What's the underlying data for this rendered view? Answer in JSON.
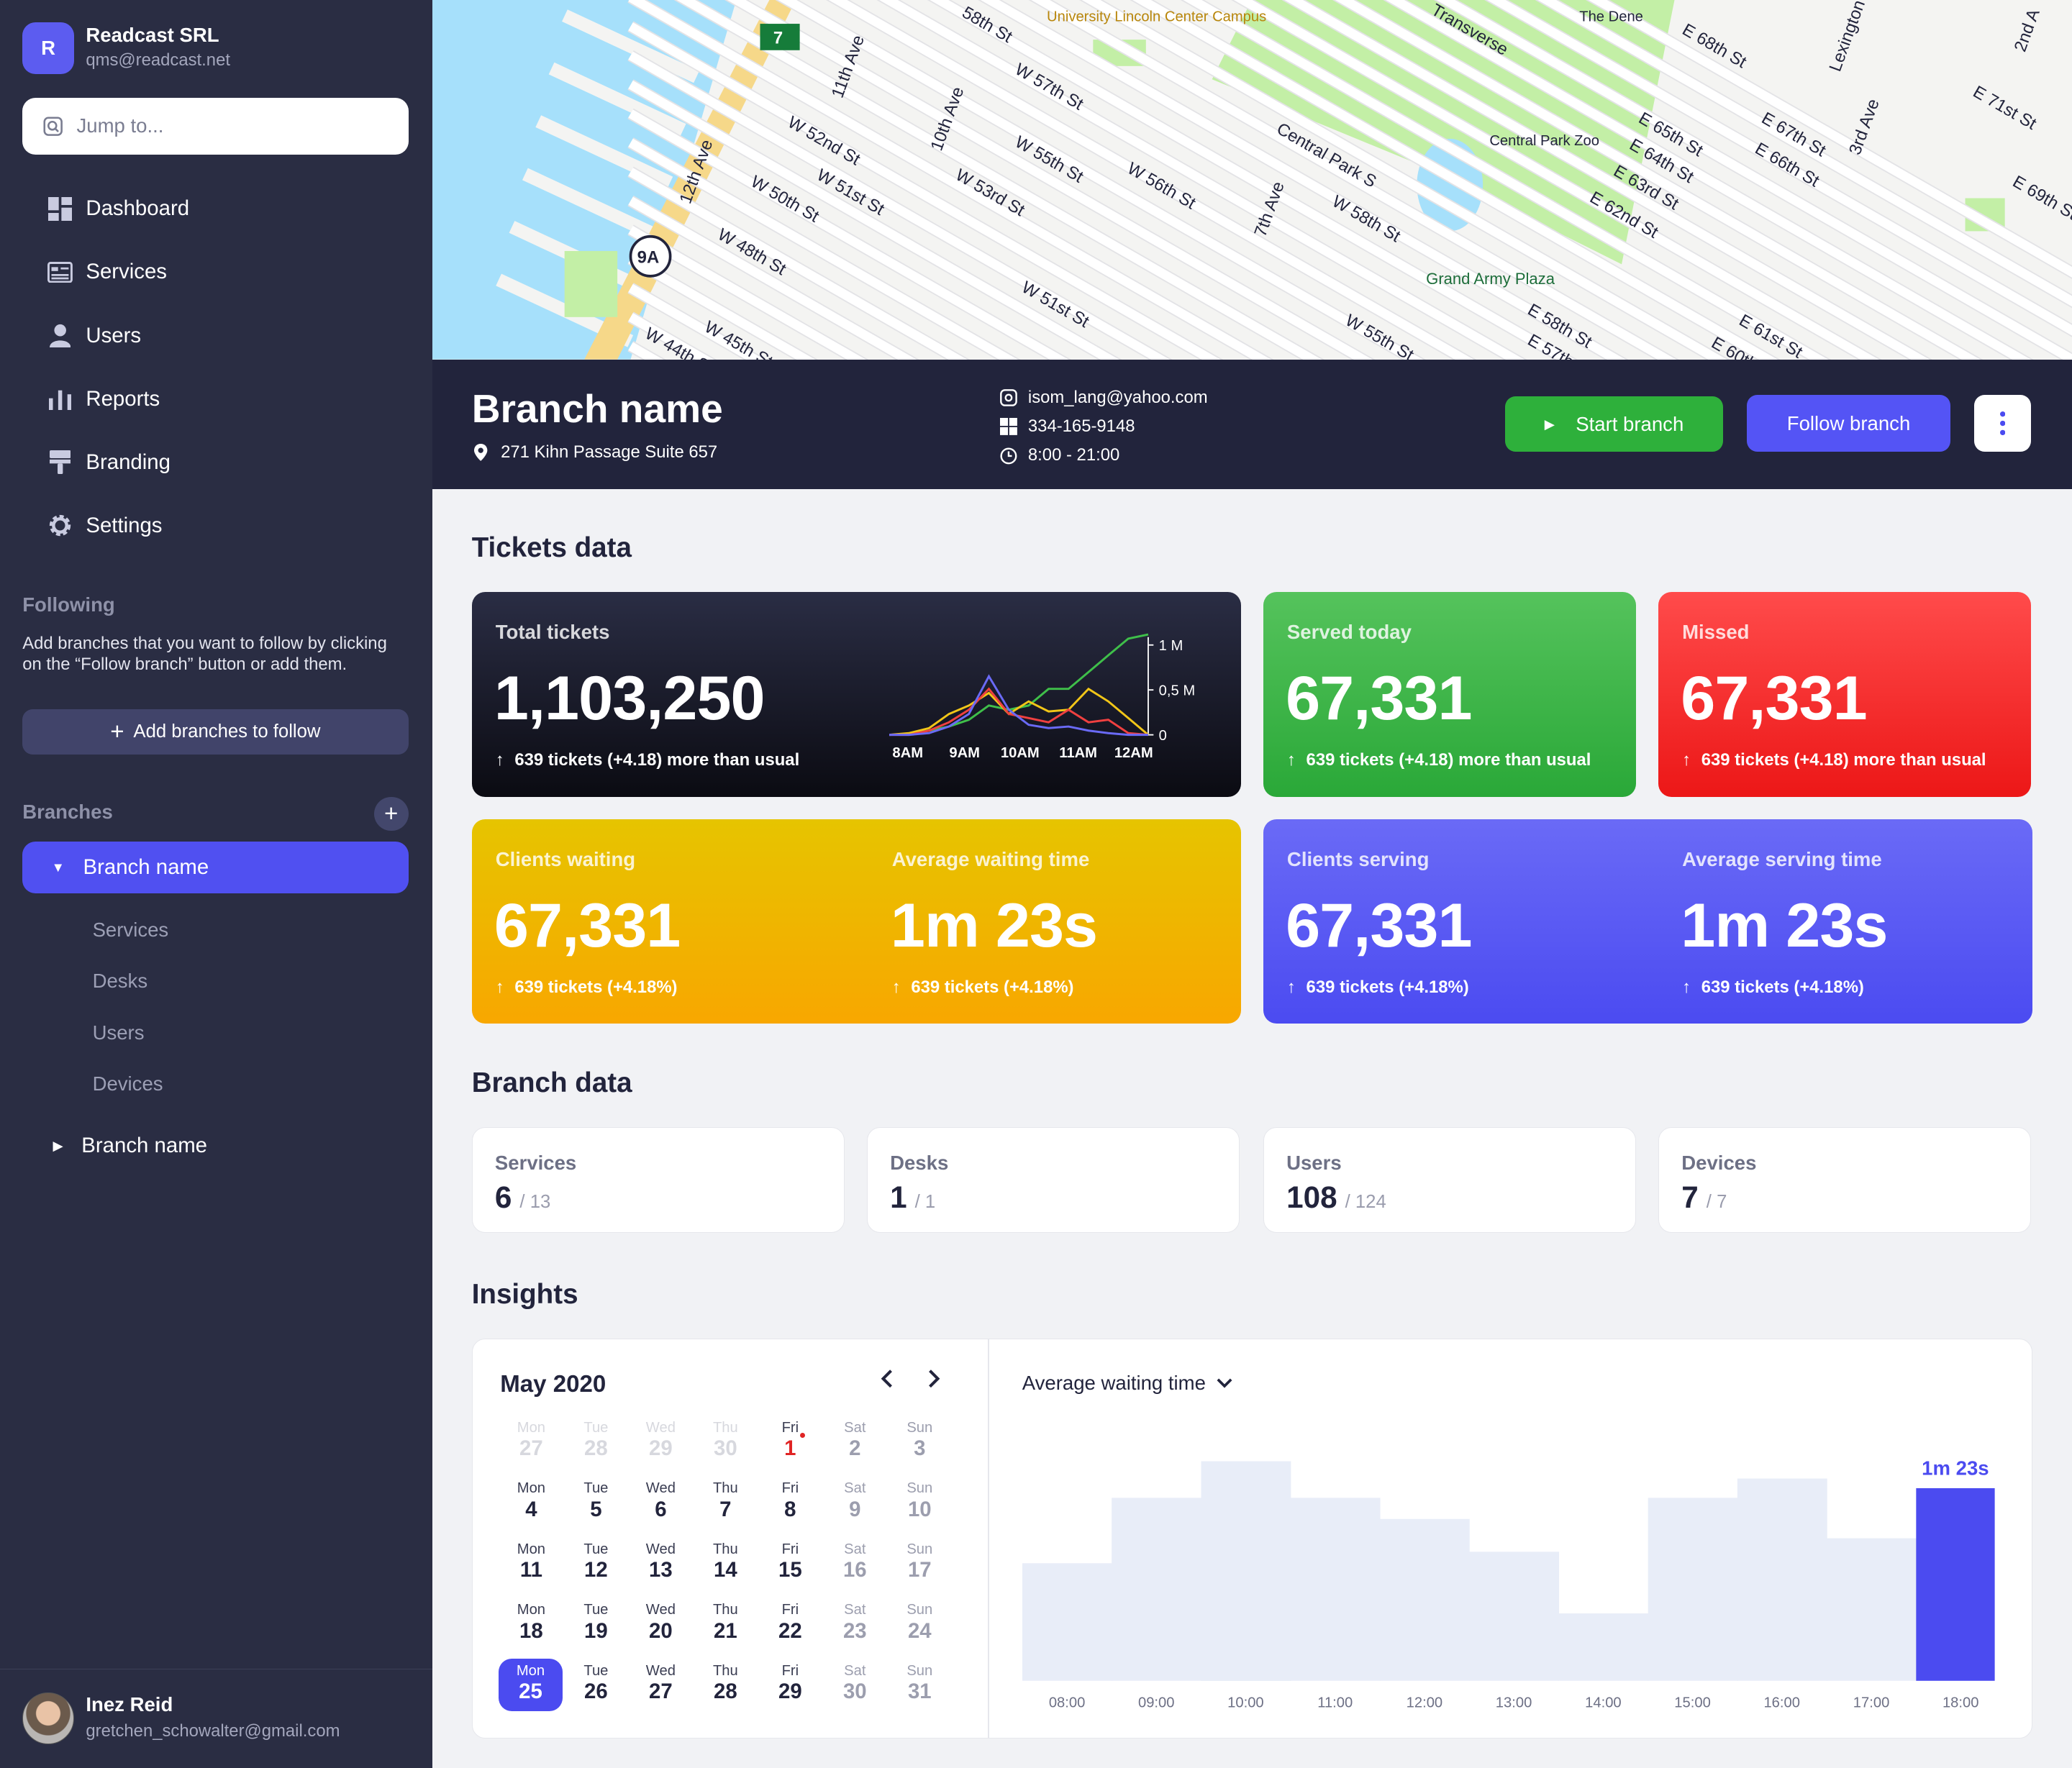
{
  "org": {
    "initial": "R",
    "name": "Readcast SRL",
    "email": "qms@readcast.net"
  },
  "search": {
    "placeholder": "Jump to..."
  },
  "nav": [
    {
      "label": "Dashboard",
      "icon": "dashboard-icon"
    },
    {
      "label": "Services",
      "icon": "services-icon"
    },
    {
      "label": "Users",
      "icon": "user-icon"
    },
    {
      "label": "Reports",
      "icon": "bar-chart-icon"
    },
    {
      "label": "Branding",
      "icon": "paint-roller-icon"
    },
    {
      "label": "Settings",
      "icon": "gear-icon"
    }
  ],
  "following": {
    "title": "Following",
    "description": "Add branches that you want to follow by clicking on the “Follow branch” button or add them.",
    "add_button": "Add branches to follow"
  },
  "branches": {
    "title": "Branches",
    "active": "Branch name",
    "subitems": [
      "Services",
      "Desks",
      "Users",
      "Devices"
    ],
    "other": "Branch name"
  },
  "user": {
    "name": "Inez Reid",
    "email": "gretchen_schowalter@gmail.com"
  },
  "map": {
    "labels": [
      "7",
      "9A",
      "11th Ave",
      "12th Ave",
      "10th Ave",
      "W 52nd St",
      "W 51st St",
      "W 50th St",
      "W 48th St",
      "W 45th St",
      "W 44th St",
      "W 57th St",
      "W 55th St",
      "W 53rd St",
      "W 56th St",
      "W 51st St",
      "W 58th St",
      "7th Ave",
      "Central Park S",
      "W 55th St",
      "Transverse",
      "The Dene",
      "Central Park Zoo",
      "Grand Army Plaza",
      "E 68th St",
      "E 65th St",
      "E 64th St",
      "E 63rd St",
      "E 62nd St",
      "E 58th St",
      "E 57th St",
      "E 61st St",
      "E 60th St",
      "E 67th St",
      "E 66th St",
      "Lexington",
      "3rd Ave",
      "2nd A",
      "E 71st St",
      "E 69th St",
      "University Lincoln Center Campus",
      "58th St"
    ],
    "colors": {
      "water": "#a6e0fb",
      "park": "#c3efa6",
      "road": "#ffffff",
      "highway": "#f6d889",
      "land": "#f4f4f2"
    }
  },
  "branch_header": {
    "name": "Branch name",
    "address": "271 Kihn Passage Suite 657",
    "email": "isom_lang@yahoo.com",
    "phone": "334-165-9148",
    "hours": "8:00 - 21:00",
    "start_label": "Start branch",
    "follow_label": "Follow branch"
  },
  "tickets": {
    "title": "Tickets data",
    "total": {
      "label": "Total tickets",
      "value": "1,103,250",
      "sub": "639 tickets (+4.18) more than usual"
    },
    "served": {
      "label": "Served today",
      "value": "67,331",
      "sub": "639 tickets (+4.18) more than usual"
    },
    "missed": {
      "label": "Missed",
      "value": "67,331",
      "sub": "639 tickets (+4.18) more than usual"
    },
    "waiting": {
      "label": "Clients waiting",
      "value": "67,331",
      "sub": "639 tickets (+4.18%)"
    },
    "avg_wait": {
      "label": "Average waiting time",
      "value": "1m 23s",
      "sub": "639 tickets (+4.18%)"
    },
    "serving": {
      "label": "Clients serving",
      "value": "67,331",
      "sub": "639 tickets (+4.18%)"
    },
    "avg_serve": {
      "label": "Average serving time",
      "value": "1m 23s",
      "sub": "639 tickets (+4.18%)"
    }
  },
  "mini_chart": {
    "type": "line",
    "x_labels": [
      "8AM",
      "9AM",
      "10AM",
      "11AM",
      "12AM"
    ],
    "y_labels": [
      "1 M",
      "0,5 M",
      "0"
    ],
    "ylim": [
      0,
      1.2
    ],
    "series": [
      {
        "color": "#3fbf4a",
        "values": [
          0.0,
          0.01,
          0.05,
          0.1,
          0.18,
          0.35,
          0.3,
          0.35,
          0.55,
          0.55,
          0.75,
          0.95,
          1.15,
          1.2
        ]
      },
      {
        "color": "#f2c618",
        "values": [
          0.0,
          0.02,
          0.08,
          0.25,
          0.35,
          0.5,
          0.25,
          0.4,
          0.28,
          0.3,
          0.55,
          0.4,
          0.2,
          0.0
        ]
      },
      {
        "color": "#f04040",
        "values": [
          0.0,
          0.0,
          0.05,
          0.15,
          0.3,
          0.55,
          0.25,
          0.2,
          0.15,
          0.3,
          0.15,
          0.18,
          0.02,
          0.0
        ]
      },
      {
        "color": "#6a6af6",
        "values": [
          0.0,
          0.0,
          0.02,
          0.1,
          0.25,
          0.7,
          0.3,
          0.12,
          0.08,
          0.1,
          0.05,
          0.02,
          0.0,
          0.0
        ]
      }
    ]
  },
  "branch_data": {
    "title": "Branch data",
    "items": [
      {
        "label": "Services",
        "value": "6",
        "total": "/ 13"
      },
      {
        "label": "Desks",
        "value": "1",
        "total": "/ 1"
      },
      {
        "label": "Users",
        "value": "108",
        "total": "/ 124"
      },
      {
        "label": "Devices",
        "value": "7",
        "total": "/ 7"
      }
    ]
  },
  "insights": {
    "title": "Insights",
    "calendar": {
      "month": "May 2020",
      "weeks": [
        [
          [
            "Mon",
            "27",
            "muted"
          ],
          [
            "Tue",
            "28",
            "muted"
          ],
          [
            "Wed",
            "29",
            "muted"
          ],
          [
            "Thu",
            "30",
            "muted"
          ],
          [
            "Fri",
            "1",
            "red"
          ],
          [
            "Sat",
            "2",
            "wk"
          ],
          [
            "Sun",
            "3",
            "wk"
          ]
        ],
        [
          [
            "Mon",
            "4",
            ""
          ],
          [
            "Tue",
            "5",
            ""
          ],
          [
            "Wed",
            "6",
            ""
          ],
          [
            "Thu",
            "7",
            ""
          ],
          [
            "Fri",
            "8",
            ""
          ],
          [
            "Sat",
            "9",
            "wk"
          ],
          [
            "Sun",
            "10",
            "wk"
          ]
        ],
        [
          [
            "Mon",
            "11",
            ""
          ],
          [
            "Tue",
            "12",
            ""
          ],
          [
            "Wed",
            "13",
            ""
          ],
          [
            "Thu",
            "14",
            ""
          ],
          [
            "Fri",
            "15",
            ""
          ],
          [
            "Sat",
            "16",
            "wk"
          ],
          [
            "Sun",
            "17",
            "wk"
          ]
        ],
        [
          [
            "Mon",
            "18",
            ""
          ],
          [
            "Tue",
            "19",
            ""
          ],
          [
            "Wed",
            "20",
            ""
          ],
          [
            "Thu",
            "21",
            ""
          ],
          [
            "Fri",
            "22",
            ""
          ],
          [
            "Sat",
            "23",
            "wk"
          ],
          [
            "Sun",
            "24",
            "wk"
          ]
        ],
        [
          [
            "Mon",
            "25",
            "sel"
          ],
          [
            "Tue",
            "26",
            ""
          ],
          [
            "Wed",
            "27",
            ""
          ],
          [
            "Thu",
            "28",
            ""
          ],
          [
            "Fri",
            "29",
            ""
          ],
          [
            "Sat",
            "30",
            "wk"
          ],
          [
            "Sun",
            "31",
            "wk"
          ]
        ]
      ]
    },
    "chart_title": "Average waiting time",
    "chart_data": {
      "type": "bar",
      "categories": [
        "08:00",
        "09:00",
        "10:00",
        "11:00",
        "12:00",
        "13:00",
        "14:00",
        "15:00",
        "16:00",
        "17:00",
        "18:00"
      ],
      "values": [
        0.61,
        0.95,
        1.14,
        0.95,
        0.84,
        0.67,
        0.35,
        0.95,
        1.05,
        0.74,
        1.0
      ],
      "highlight_index": 10,
      "highlight_label": "1m 23s",
      "colors": {
        "bar": "#e8edf8",
        "highlight": "#4b4bf0"
      }
    }
  }
}
